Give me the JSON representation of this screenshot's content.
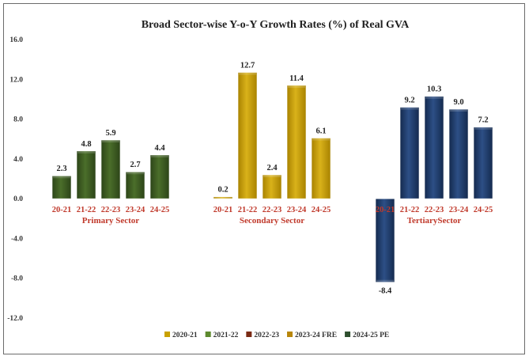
{
  "chart_data": {
    "type": "bar",
    "title": "Broad Sector-wise Y-o-Y Growth Rates (%) of Real GVA",
    "ylim": [
      -12,
      16
    ],
    "yticks": [
      "16.0",
      "12.0",
      "8.0",
      "4.0",
      "0.0",
      "-4.0",
      "-8.0",
      "-12.0"
    ],
    "groups": [
      {
        "name": "Primary Sector",
        "color": "#3d5a22",
        "categories": [
          "20-21",
          "21-22",
          "22-23",
          "23-24",
          "24-25"
        ],
        "values": [
          2.3,
          4.8,
          5.9,
          2.7,
          4.4
        ],
        "labels": [
          "2.3",
          "4.8",
          "5.9",
          "2.7",
          "4.4"
        ],
        "has_2020_bar": false
      },
      {
        "name": "Secondary Sector",
        "color": "#c9a100",
        "categories": [
          "20-21",
          "21-22",
          "22-23",
          "23-24",
          "24-25"
        ],
        "values": [
          0.2,
          12.7,
          2.4,
          11.4,
          6.1
        ],
        "labels": [
          "0.2",
          "12.7",
          "2.4",
          "11.4",
          "6.1"
        ],
        "has_2020_bar": true
      },
      {
        "name": "TertiarySector",
        "color": "#1f3a68",
        "categories": [
          "20-21",
          "21-22",
          "22-23",
          "23-24",
          "24-25"
        ],
        "values": [
          -8.4,
          9.2,
          10.3,
          9.0,
          7.2
        ],
        "labels": [
          "-8.4",
          "9.2",
          "10.3",
          "9.0",
          "7.2"
        ],
        "has_2020_bar": true
      }
    ],
    "legend": [
      {
        "label": "2020-21",
        "color": "#c9a100"
      },
      {
        "label": "2021-22",
        "color": "#5d8a2e"
      },
      {
        "label": "2022-23",
        "color": "#7a2a14"
      },
      {
        "label": "2023-24 FRE",
        "color": "#b8860b"
      },
      {
        "label": "2024-25 PE",
        "color": "#2f4f2f"
      }
    ]
  }
}
